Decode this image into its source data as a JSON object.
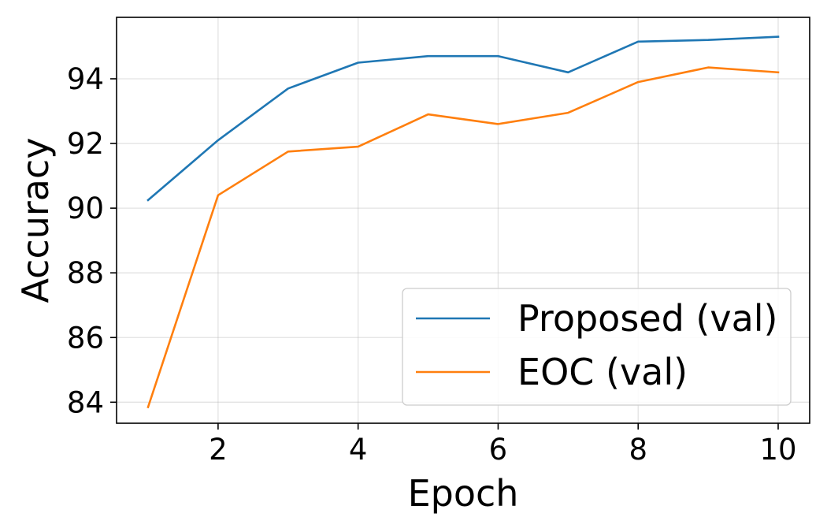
{
  "chart_data": {
    "type": "line",
    "title": "",
    "xlabel": "Epoch",
    "ylabel": "Accuracy",
    "x": [
      1,
      2,
      3,
      4,
      5,
      6,
      7,
      8,
      9,
      10
    ],
    "xlim": [
      0.55,
      10.45
    ],
    "ylim": [
      83.35,
      95.9
    ],
    "xticks": [
      2,
      4,
      6,
      8,
      10
    ],
    "yticks": [
      84,
      86,
      88,
      90,
      92,
      94
    ],
    "grid": true,
    "legend_position": "lower-right",
    "series": [
      {
        "name": "Proposed (val)",
        "color": "#1f77b4",
        "values": [
          90.25,
          92.1,
          93.7,
          94.5,
          94.7,
          94.7,
          94.2,
          95.15,
          95.2,
          95.3
        ]
      },
      {
        "name": "EOC (val)",
        "color": "#ff7f0e",
        "values": [
          83.85,
          90.4,
          91.75,
          91.9,
          92.9,
          92.6,
          92.95,
          93.9,
          94.35,
          94.2
        ]
      }
    ]
  }
}
